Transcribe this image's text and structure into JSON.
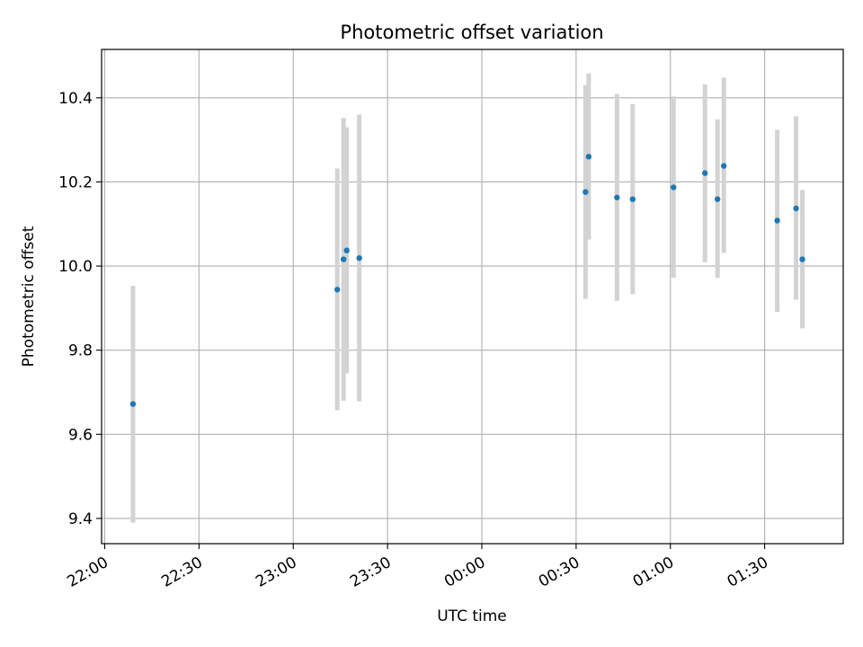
{
  "chart_data": {
    "type": "scatter",
    "title": "Photometric offset variation",
    "xlabel": "UTC time",
    "ylabel": "Photometric offset",
    "x_axis_kind": "time",
    "x_ticks": [
      "22:00",
      "22:30",
      "23:00",
      "23:30",
      "00:00",
      "00:30",
      "01:00",
      "01:30"
    ],
    "y_ticks": [
      "9.4",
      "9.6",
      "9.8",
      "10.0",
      "10.2",
      "10.4"
    ],
    "xlim": [
      "21:59",
      "01:55"
    ],
    "ylim": [
      9.34,
      10.515
    ],
    "grid": true,
    "colors": {
      "point": "#1f77b4",
      "errorbar": "#d3d3d3",
      "grid": "#b0b0b0",
      "axes": "#000000"
    },
    "points": [
      {
        "x": "22:09",
        "y": 9.672,
        "yerr_low": 9.39,
        "yerr_high": 9.953
      },
      {
        "x": "23:14",
        "y": 9.944,
        "yerr_low": 9.657,
        "yerr_high": 10.232
      },
      {
        "x": "23:16",
        "y": 10.016,
        "yerr_low": 9.68,
        "yerr_high": 10.352
      },
      {
        "x": "23:17",
        "y": 10.037,
        "yerr_low": 9.745,
        "yerr_high": 10.33
      },
      {
        "x": "23:21",
        "y": 10.019,
        "yerr_low": 9.678,
        "yerr_high": 10.36
      },
      {
        "x": "00:33",
        "y": 10.176,
        "yerr_low": 9.922,
        "yerr_high": 10.43
      },
      {
        "x": "00:34",
        "y": 10.26,
        "yerr_low": 10.063,
        "yerr_high": 10.458
      },
      {
        "x": "00:43",
        "y": 10.163,
        "yerr_low": 9.917,
        "yerr_high": 10.409
      },
      {
        "x": "00:48",
        "y": 10.159,
        "yerr_low": 9.933,
        "yerr_high": 10.385
      },
      {
        "x": "01:01",
        "y": 10.187,
        "yerr_low": 9.972,
        "yerr_high": 10.403
      },
      {
        "x": "01:11",
        "y": 10.221,
        "yerr_low": 10.009,
        "yerr_high": 10.432
      },
      {
        "x": "01:15",
        "y": 10.159,
        "yerr_low": 9.972,
        "yerr_high": 10.349
      },
      {
        "x": "01:17",
        "y": 10.238,
        "yerr_low": 10.031,
        "yerr_high": 10.448
      },
      {
        "x": "01:34",
        "y": 10.108,
        "yerr_low": 9.891,
        "yerr_high": 10.324
      },
      {
        "x": "01:40",
        "y": 10.137,
        "yerr_low": 9.92,
        "yerr_high": 10.356
      },
      {
        "x": "01:42",
        "y": 10.016,
        "yerr_low": 9.852,
        "yerr_high": 10.181
      }
    ]
  }
}
